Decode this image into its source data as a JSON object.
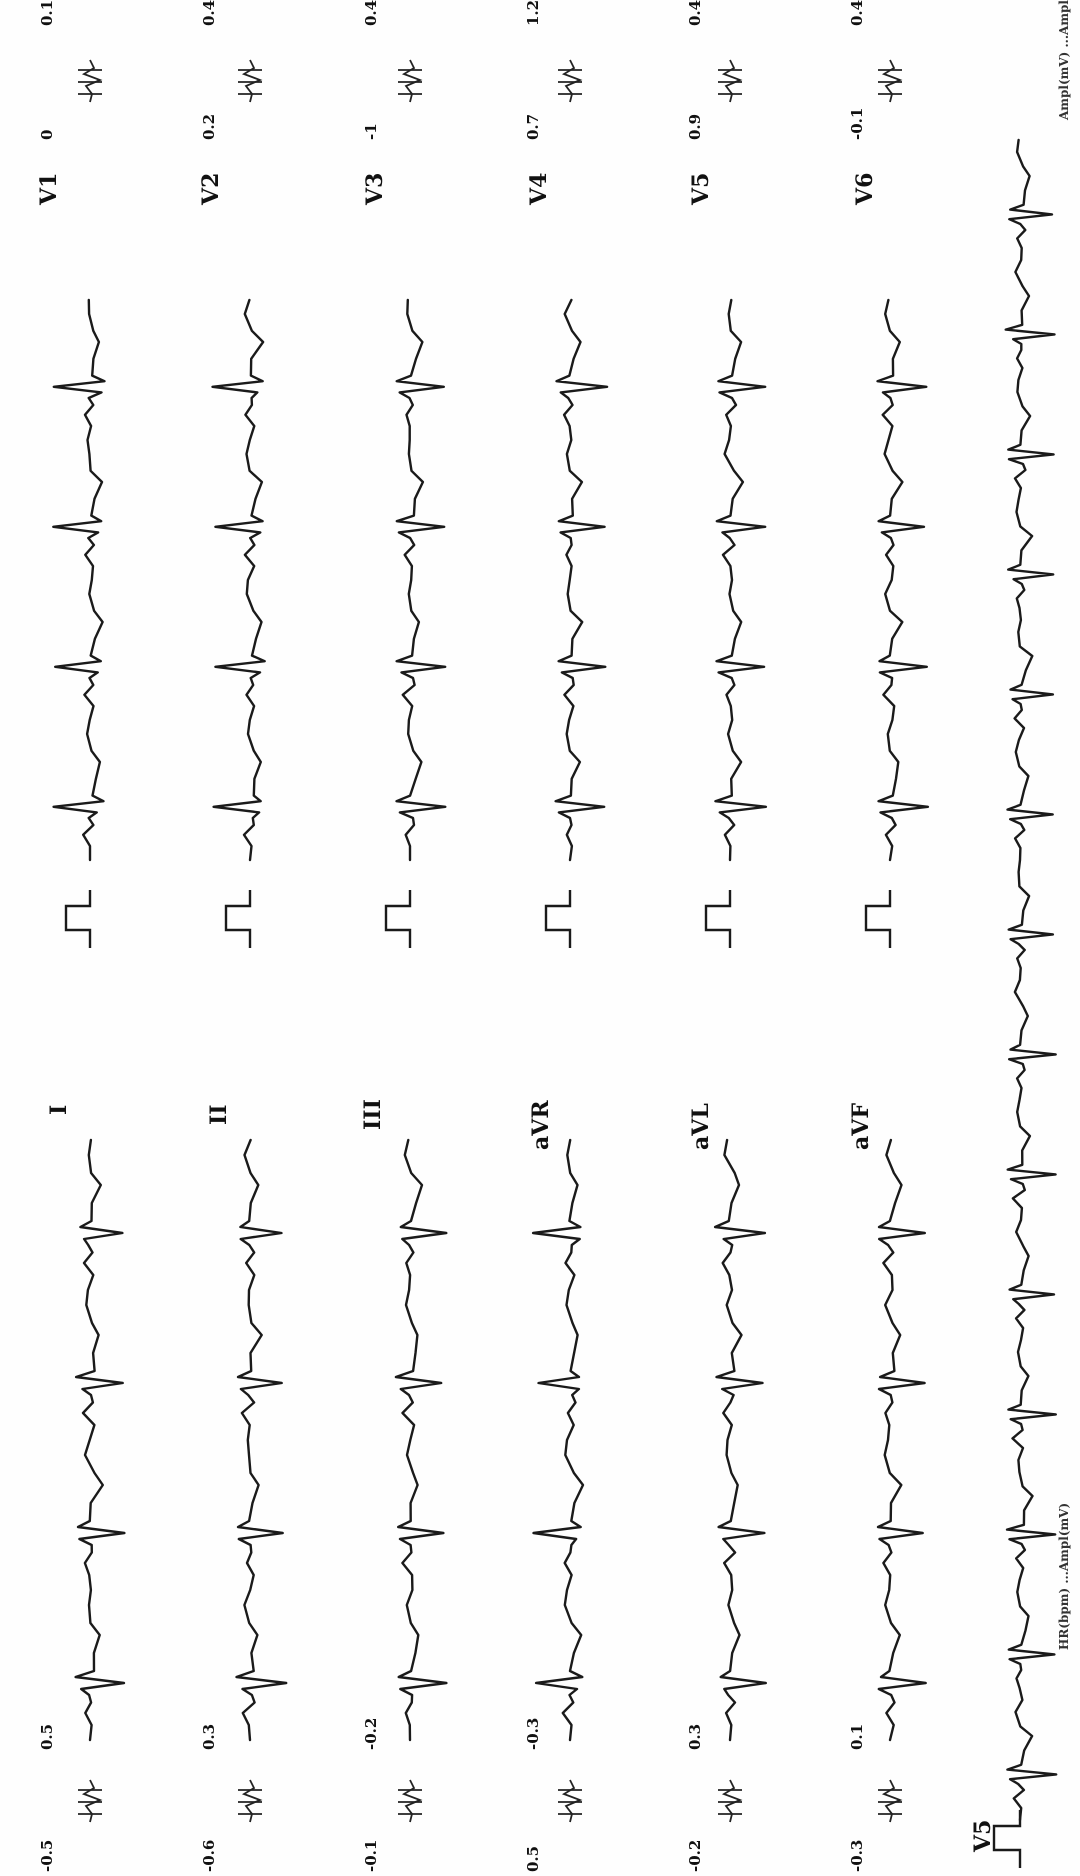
{
  "header_left": "HR(bpm) ...Ampl(mV)",
  "header_right": "Ampl(mV) ...Amplitude",
  "leads_left": [
    {
      "name": "I",
      "left_value": "-0.5",
      "right_value": "0.5"
    },
    {
      "name": "II",
      "left_value": "-0.6",
      "right_value": "0.3"
    },
    {
      "name": "III",
      "left_value": "-0.1",
      "right_value": "-0.2"
    },
    {
      "name": "aVR",
      "left_value": "0.5",
      "right_value": "-0.3"
    },
    {
      "name": "aVL",
      "left_value": "-0.2",
      "right_value": "0.3"
    },
    {
      "name": "aVF",
      "left_value": "-0.3",
      "right_value": "0.1"
    }
  ],
  "leads_right": [
    {
      "name": "V1",
      "left_value": "0",
      "right_value": "0.1"
    },
    {
      "name": "V2",
      "left_value": "0.2",
      "right_value": "0.4"
    },
    {
      "name": "V3",
      "left_value": "-1",
      "right_value": "0.4"
    },
    {
      "name": "V4",
      "left_value": "0.7",
      "right_value": "1.2"
    },
    {
      "name": "V5",
      "left_value": "0.9",
      "right_value": "0.4"
    },
    {
      "name": "V6",
      "left_value": "-0.1",
      "right_value": "0.4"
    }
  ],
  "rhythm_strip": {
    "lead": "V5"
  }
}
